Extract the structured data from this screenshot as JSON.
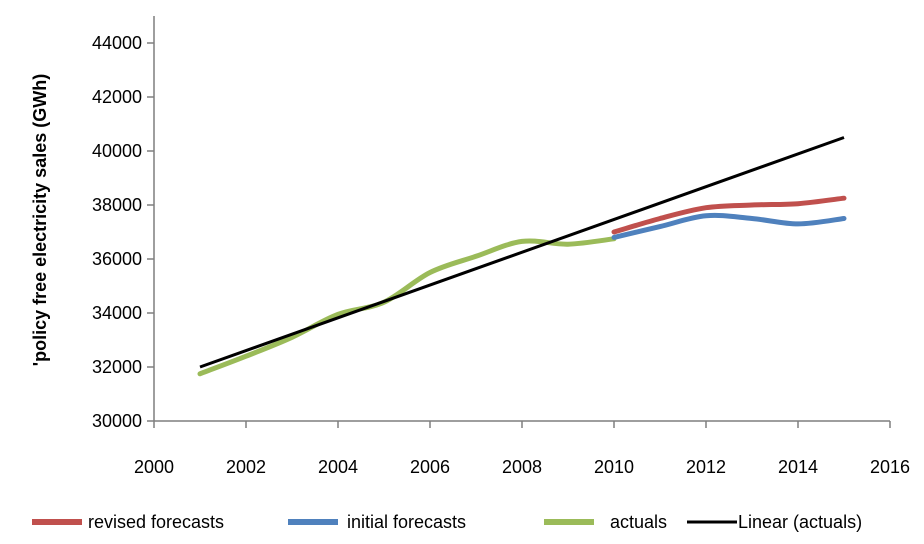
{
  "chart_data": {
    "type": "line",
    "title": "",
    "xlabel": "",
    "ylabel": "'policy free electricity sales (GWh)",
    "xlim": [
      2000,
      2016
    ],
    "ylim": [
      30000,
      45000
    ],
    "xticks": [
      2000,
      2002,
      2004,
      2006,
      2008,
      2010,
      2012,
      2014,
      2016
    ],
    "yticks": [
      30000,
      32000,
      34000,
      36000,
      38000,
      40000,
      42000,
      44000
    ],
    "grid": false,
    "legend_position": "bottom",
    "series": [
      {
        "name": "revised forecasts",
        "color": "#c0504d",
        "smooth": true,
        "x": [
          2010,
          2011,
          2012,
          2013,
          2014,
          2015
        ],
        "y": [
          37000,
          37500,
          37900,
          38000,
          38050,
          38250
        ]
      },
      {
        "name": "initial forecasts",
        "color": "#4f81bd",
        "smooth": true,
        "x": [
          2010,
          2011,
          2012,
          2013,
          2014,
          2015
        ],
        "y": [
          36800,
          37200,
          37600,
          37500,
          37300,
          37500
        ]
      },
      {
        "name": "actuals",
        "color": "#9bbb59",
        "smooth": true,
        "x": [
          2001,
          2002,
          2003,
          2004,
          2005,
          2006,
          2007,
          2008,
          2009,
          2010
        ],
        "y": [
          31750,
          32400,
          33100,
          33950,
          34400,
          35500,
          36100,
          36650,
          36550,
          36750
        ]
      },
      {
        "name": "Linear (actuals)",
        "color": "#000000",
        "smooth": false,
        "x": [
          2001,
          2015
        ],
        "y": [
          32000,
          40500
        ]
      }
    ]
  }
}
